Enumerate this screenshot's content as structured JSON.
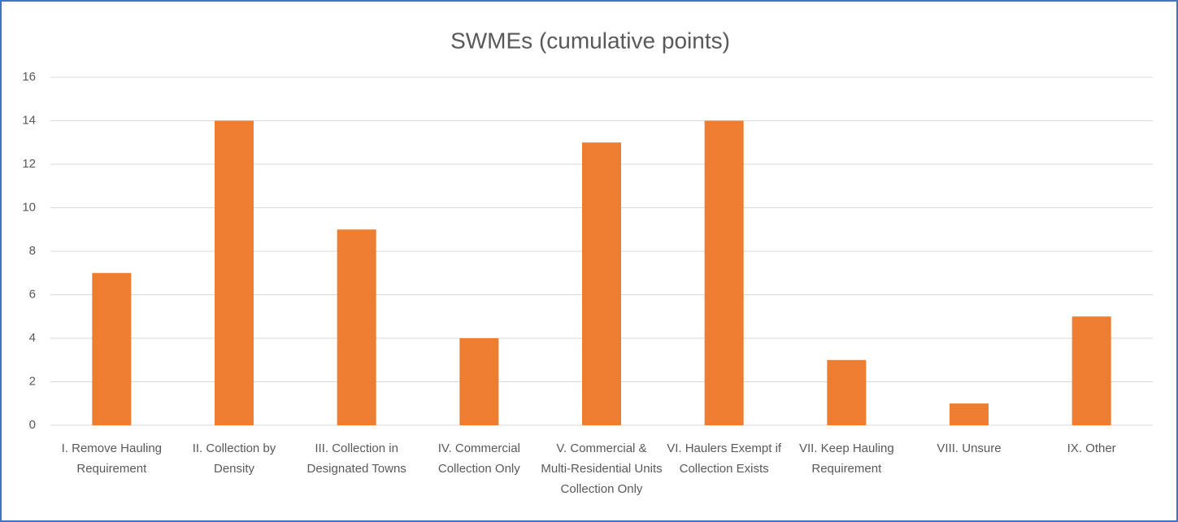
{
  "chart_data": {
    "type": "bar",
    "title": "SWMEs (cumulative points)",
    "categories": [
      "I. Remove Hauling Requirement",
      "II. Collection by Density",
      "III. Collection in Designated Towns",
      "IV. Commercial Collection Only",
      "V. Commercial & Multi-Residential Units Collection Only",
      "VI. Haulers Exempt if Collection Exists",
      "VII. Keep Hauling Requirement",
      "VIII. Unsure",
      "IX. Other"
    ],
    "values": [
      7,
      14,
      9,
      4,
      13,
      14,
      3,
      1,
      5
    ],
    "color": "#ed7d31",
    "ylim": [
      0,
      16
    ],
    "yticks": [
      0,
      2,
      4,
      6,
      8,
      10,
      12,
      14,
      16
    ],
    "grid": true
  }
}
